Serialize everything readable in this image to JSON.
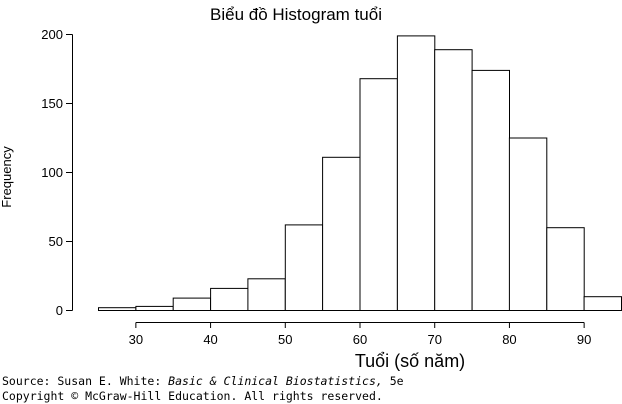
{
  "chart_data": {
    "type": "bar",
    "title": "Biểu đồ Histogram tuổi",
    "xlabel": "Tuổi (số năm)",
    "ylabel": "Frequency",
    "bin_edges": [
      25,
      30,
      35,
      40,
      45,
      50,
      55,
      60,
      65,
      70,
      75,
      80,
      85,
      90,
      95
    ],
    "values": [
      2,
      3,
      9,
      16,
      23,
      62,
      111,
      168,
      199,
      189,
      174,
      125,
      60,
      10
    ],
    "x_ticks": [
      30,
      40,
      50,
      60,
      70,
      80,
      90
    ],
    "y_ticks": [
      0,
      50,
      100,
      150,
      200
    ],
    "xlim": [
      25,
      95
    ],
    "ylim": [
      0,
      200
    ]
  },
  "source": {
    "prefix": "Source: Susan E. White: ",
    "book": "Basic & Clinical Biostatistics,",
    "edition": " 5e",
    "copyright": "Copyright © McGraw-Hill Education. All rights reserved."
  }
}
